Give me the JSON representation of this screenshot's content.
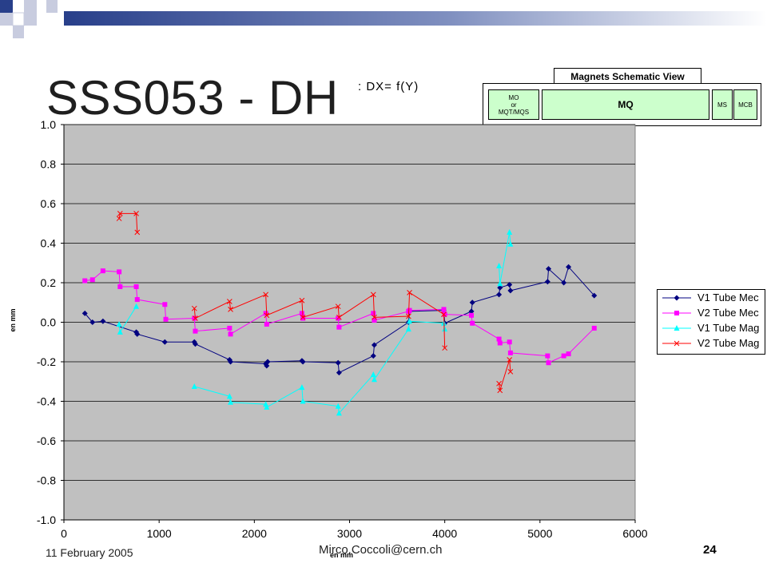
{
  "slide": {
    "title": "SSS053 - DH",
    "subtitle": ": DX= f(Y)",
    "footer_date": "11 February 2005",
    "footer_author": "Mirco.Coccoli@cern.ch",
    "page_number": "24"
  },
  "schematic": {
    "title": "Magnets Schematic View",
    "magnets": [
      {
        "label": "MO\nor\nMQT/MQS"
      },
      {
        "label": "MQ"
      },
      {
        "label": "MS"
      },
      {
        "label": "MCB"
      }
    ],
    "fill_color": "#ccffcc"
  },
  "chart_data": {
    "type": "line",
    "xlabel": "en mm",
    "ylabel": "en mm",
    "xlim": [
      0,
      6000
    ],
    "ylim": [
      -1.0,
      1.0
    ],
    "x_ticks": [
      "0",
      "1000",
      "2000",
      "3000",
      "4000",
      "5000",
      "6000"
    ],
    "y_ticks": [
      "1.0",
      "0.8",
      "0.6",
      "0.4",
      "0.2",
      "0.0",
      "-0.2",
      "-0.4",
      "-0.6",
      "-0.8",
      "-1.0"
    ],
    "grid": true,
    "plot_background": "#c0c0c0",
    "legend_position": "right",
    "series": [
      {
        "name": "V1 Tube Mec",
        "color": "#000080",
        "marker": "diamond",
        "points": [
          [
            220,
            0.045
          ],
          [
            300,
            0.0
          ],
          [
            410,
            0.005
          ],
          [
            760,
            -0.05
          ],
          [
            770,
            -0.06
          ],
          [
            1060,
            -0.1
          ],
          [
            1370,
            -0.1
          ],
          [
            1380,
            -0.11
          ],
          [
            1740,
            -0.19
          ],
          [
            1750,
            -0.2
          ],
          [
            2120,
            -0.21
          ],
          [
            2130,
            -0.22
          ],
          [
            2140,
            -0.2
          ],
          [
            2500,
            -0.195
          ],
          [
            2510,
            -0.2
          ],
          [
            2880,
            -0.205
          ],
          [
            2890,
            -0.255
          ],
          [
            3250,
            -0.17
          ],
          [
            3260,
            -0.115
          ],
          [
            3620,
            0.0
          ],
          [
            3630,
            0.055
          ],
          [
            3990,
            0.06
          ],
          [
            4000,
            -0.005
          ],
          [
            4280,
            0.055
          ],
          [
            4290,
            0.1
          ],
          [
            4570,
            0.14
          ],
          [
            4580,
            0.175
          ],
          [
            4680,
            0.19
          ],
          [
            4690,
            0.16
          ],
          [
            5080,
            0.205
          ],
          [
            5090,
            0.27
          ],
          [
            5250,
            0.2
          ],
          [
            5300,
            0.28
          ],
          [
            5570,
            0.135
          ]
        ]
      },
      {
        "name": "V2 Tube Mec",
        "color": "#ff00ff",
        "marker": "square",
        "points": [
          [
            220,
            0.21
          ],
          [
            300,
            0.215
          ],
          [
            410,
            0.26
          ],
          [
            580,
            0.255
          ],
          [
            590,
            0.18
          ],
          [
            760,
            0.18
          ],
          [
            770,
            0.115
          ],
          [
            1060,
            0.09
          ],
          [
            1070,
            0.015
          ],
          [
            1370,
            0.02
          ],
          [
            1380,
            -0.045
          ],
          [
            1740,
            -0.03
          ],
          [
            1750,
            -0.06
          ],
          [
            2120,
            0.045
          ],
          [
            2130,
            -0.01
          ],
          [
            2500,
            0.045
          ],
          [
            2510,
            0.02
          ],
          [
            2880,
            0.02
          ],
          [
            2890,
            -0.025
          ],
          [
            3250,
            0.045
          ],
          [
            3260,
            0.01
          ],
          [
            3620,
            0.055
          ],
          [
            3630,
            0.06
          ],
          [
            3990,
            0.065
          ],
          [
            4000,
            0.04
          ],
          [
            4280,
            0.035
          ],
          [
            4290,
            -0.005
          ],
          [
            4570,
            -0.085
          ],
          [
            4580,
            -0.105
          ],
          [
            4680,
            -0.1
          ],
          [
            4690,
            -0.155
          ],
          [
            5080,
            -0.17
          ],
          [
            5090,
            -0.205
          ],
          [
            5250,
            -0.17
          ],
          [
            5300,
            -0.16
          ],
          [
            5570,
            -0.03
          ]
        ]
      },
      {
        "name": "V1 Tube Mag",
        "color": "#00ffff",
        "marker": "triangle",
        "segments": [
          [
            [
              580,
              -0.01
            ],
            [
              590,
              -0.05
            ],
            [
              760,
              0.08
            ]
          ],
          [
            [
              1370,
              -0.325
            ],
            [
              1740,
              -0.375
            ],
            [
              1750,
              -0.405
            ],
            [
              2120,
              -0.415
            ],
            [
              2130,
              -0.43
            ],
            [
              2500,
              -0.33
            ],
            [
              2510,
              -0.4
            ],
            [
              2880,
              -0.425
            ],
            [
              2890,
              -0.46
            ],
            [
              3250,
              -0.265
            ],
            [
              3260,
              -0.29
            ],
            [
              3620,
              -0.035
            ],
            [
              3630,
              0.005
            ],
            [
              3990,
              -0.005
            ],
            [
              4000,
              -0.035
            ]
          ],
          [
            [
              4570,
              0.285
            ],
            [
              4580,
              0.195
            ],
            [
              4680,
              0.455
            ],
            [
              4690,
              0.395
            ]
          ]
        ]
      },
      {
        "name": "V2 Tube Mag",
        "color": "#ff0000",
        "marker": "x",
        "segments": [
          [
            [
              580,
              0.525
            ],
            [
              590,
              0.55
            ],
            [
              760,
              0.55
            ],
            [
              770,
              0.455
            ]
          ],
          [
            [
              1370,
              0.07
            ],
            [
              1380,
              0.02
            ],
            [
              1740,
              0.105
            ],
            [
              1750,
              0.065
            ],
            [
              2120,
              0.14
            ],
            [
              2130,
              0.035
            ],
            [
              2500,
              0.11
            ],
            [
              2510,
              0.025
            ],
            [
              2880,
              0.08
            ],
            [
              2890,
              0.025
            ],
            [
              3250,
              0.14
            ],
            [
              3260,
              0.025
            ],
            [
              3620,
              0.03
            ],
            [
              3630,
              0.15
            ],
            [
              3990,
              0.04
            ],
            [
              4000,
              -0.13
            ]
          ],
          [
            [
              4570,
              -0.31
            ],
            [
              4580,
              -0.345
            ],
            [
              4680,
              -0.19
            ],
            [
              4690,
              -0.25
            ]
          ]
        ]
      }
    ]
  }
}
